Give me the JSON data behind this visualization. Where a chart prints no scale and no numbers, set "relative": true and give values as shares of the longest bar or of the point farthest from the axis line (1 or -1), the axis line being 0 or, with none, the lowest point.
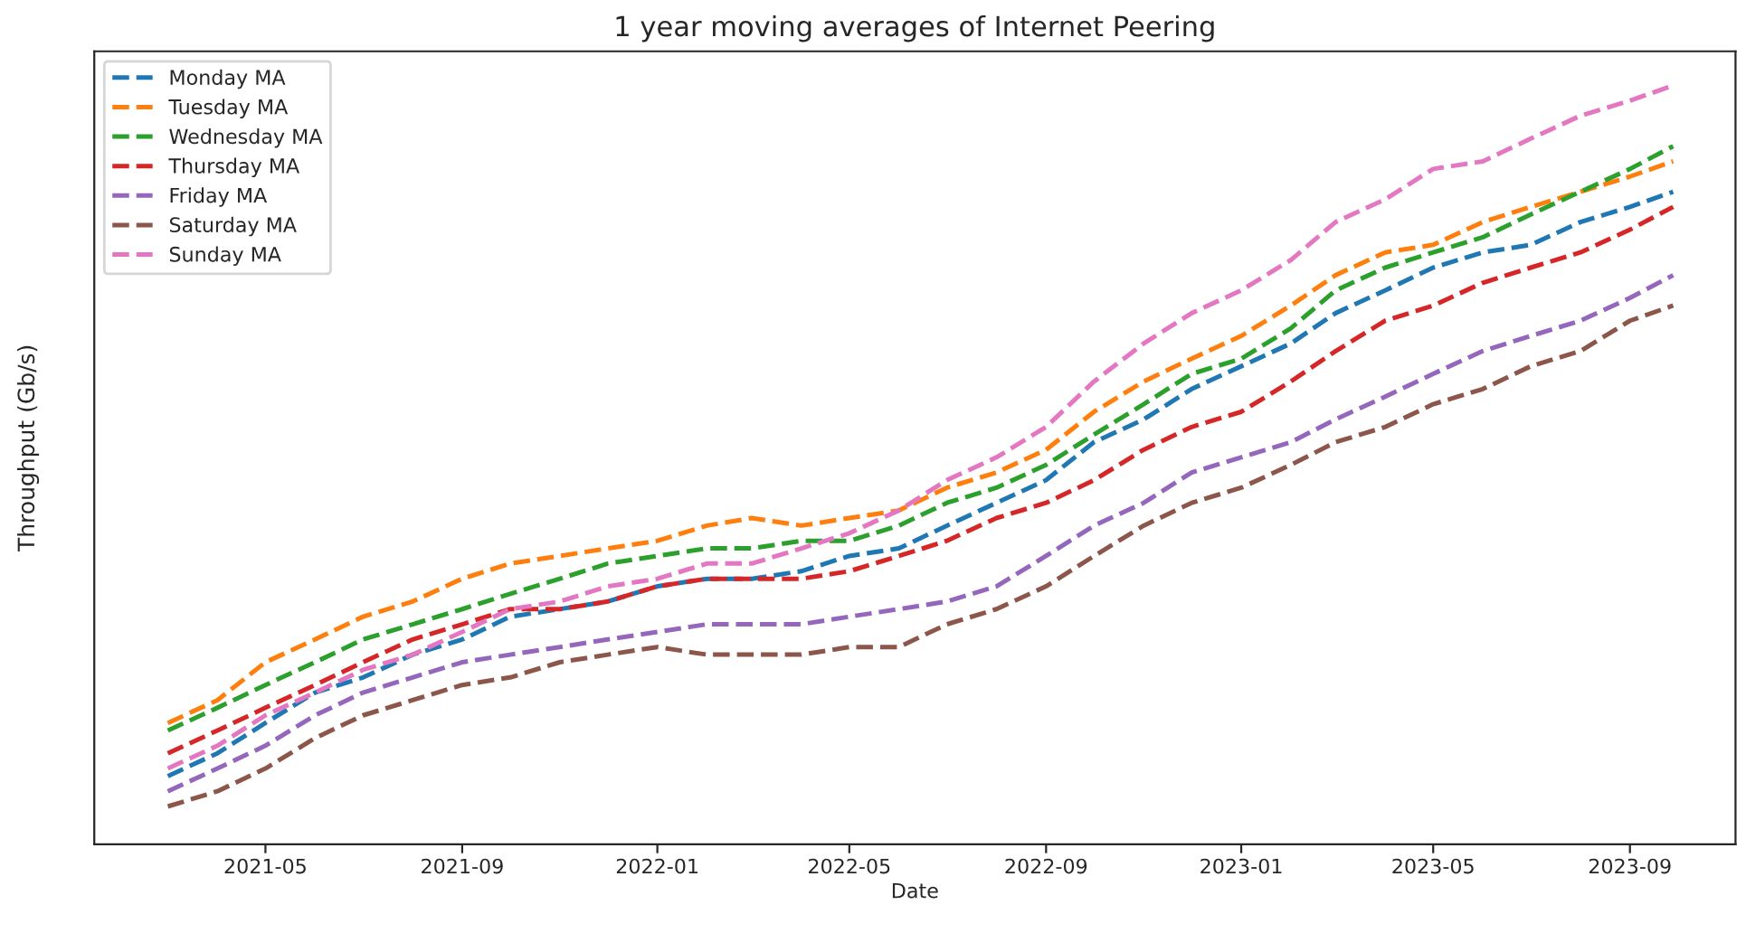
{
  "chart_data": {
    "type": "line",
    "title": "1 year moving averages of Internet Peering",
    "xlabel": "Date",
    "ylabel": "Throughput (Gb/s)",
    "relative": true,
    "line_style": "dashed",
    "legend": "top left",
    "grid": false,
    "x": [
      "2021-03-01",
      "2021-04-01",
      "2021-05-01",
      "2021-06-01",
      "2021-07-01",
      "2021-08-01",
      "2021-09-01",
      "2021-10-01",
      "2021-11-01",
      "2021-12-01",
      "2022-01-01",
      "2022-02-01",
      "2022-03-01",
      "2022-04-01",
      "2022-05-01",
      "2022-06-01",
      "2022-07-01",
      "2022-08-01",
      "2022-09-01",
      "2022-10-01",
      "2022-11-01",
      "2022-12-01",
      "2023-01-01",
      "2023-02-01",
      "2023-03-01",
      "2023-04-01",
      "2023-05-01",
      "2023-06-01",
      "2023-07-01",
      "2023-08-01",
      "2023-09-01",
      "2023-09-28"
    ],
    "xlim": [
      "2021-01-14",
      "2023-11-06"
    ],
    "xticks": [
      {
        "value": "2021-05-01",
        "label": "2021-05"
      },
      {
        "value": "2021-09-01",
        "label": "2021-09"
      },
      {
        "value": "2022-01-01",
        "label": "2022-01"
      },
      {
        "value": "2022-05-01",
        "label": "2022-05"
      },
      {
        "value": "2022-09-01",
        "label": "2022-09"
      },
      {
        "value": "2023-01-01",
        "label": "2023-01"
      },
      {
        "value": "2023-05-01",
        "label": "2023-05"
      },
      {
        "value": "2023-09-01",
        "label": "2023-09"
      }
    ],
    "series": [
      {
        "name": "Monday MA",
        "color": "#1f77b4",
        "values": [
          0.09,
          0.12,
          0.16,
          0.2,
          0.22,
          0.25,
          0.27,
          0.3,
          0.31,
          0.32,
          0.34,
          0.35,
          0.35,
          0.36,
          0.38,
          0.39,
          0.42,
          0.45,
          0.48,
          0.53,
          0.56,
          0.6,
          0.63,
          0.66,
          0.7,
          0.73,
          0.76,
          0.78,
          0.79,
          0.82,
          0.84,
          0.86
        ]
      },
      {
        "name": "Tuesday MA",
        "color": "#ff7f0e",
        "values": [
          0.16,
          0.19,
          0.24,
          0.27,
          0.3,
          0.32,
          0.35,
          0.37,
          0.38,
          0.39,
          0.4,
          0.42,
          0.43,
          0.42,
          0.43,
          0.44,
          0.47,
          0.49,
          0.52,
          0.57,
          0.61,
          0.64,
          0.67,
          0.71,
          0.75,
          0.78,
          0.79,
          0.82,
          0.84,
          0.86,
          0.88,
          0.9
        ]
      },
      {
        "name": "Wednesday MA",
        "color": "#2ca02c",
        "values": [
          0.15,
          0.18,
          0.21,
          0.24,
          0.27,
          0.29,
          0.31,
          0.33,
          0.35,
          0.37,
          0.38,
          0.39,
          0.39,
          0.4,
          0.4,
          0.42,
          0.45,
          0.47,
          0.5,
          0.54,
          0.58,
          0.62,
          0.64,
          0.68,
          0.73,
          0.76,
          0.78,
          0.8,
          0.83,
          0.86,
          0.89,
          0.92
        ]
      },
      {
        "name": "Thursday MA",
        "color": "#d62728",
        "values": [
          0.12,
          0.15,
          0.18,
          0.21,
          0.24,
          0.27,
          0.29,
          0.31,
          0.31,
          0.32,
          0.34,
          0.35,
          0.35,
          0.35,
          0.36,
          0.38,
          0.4,
          0.43,
          0.45,
          0.48,
          0.52,
          0.55,
          0.57,
          0.61,
          0.65,
          0.69,
          0.71,
          0.74,
          0.76,
          0.78,
          0.81,
          0.84
        ]
      },
      {
        "name": "Friday MA",
        "color": "#9467bd",
        "values": [
          0.07,
          0.1,
          0.13,
          0.17,
          0.2,
          0.22,
          0.24,
          0.25,
          0.26,
          0.27,
          0.28,
          0.29,
          0.29,
          0.29,
          0.3,
          0.31,
          0.32,
          0.34,
          0.38,
          0.42,
          0.45,
          0.49,
          0.51,
          0.53,
          0.56,
          0.59,
          0.62,
          0.65,
          0.67,
          0.69,
          0.72,
          0.75
        ]
      },
      {
        "name": "Saturday MA",
        "color": "#8c564b",
        "values": [
          0.05,
          0.07,
          0.1,
          0.14,
          0.17,
          0.19,
          0.21,
          0.22,
          0.24,
          0.25,
          0.26,
          0.25,
          0.25,
          0.25,
          0.26,
          0.26,
          0.29,
          0.31,
          0.34,
          0.38,
          0.42,
          0.45,
          0.47,
          0.5,
          0.53,
          0.55,
          0.58,
          0.6,
          0.63,
          0.65,
          0.69,
          0.71
        ]
      },
      {
        "name": "Sunday MA",
        "color": "#e377c2",
        "values": [
          0.1,
          0.13,
          0.17,
          0.2,
          0.23,
          0.25,
          0.28,
          0.31,
          0.32,
          0.34,
          0.35,
          0.37,
          0.37,
          0.39,
          0.41,
          0.44,
          0.48,
          0.51,
          0.55,
          0.61,
          0.66,
          0.7,
          0.73,
          0.77,
          0.82,
          0.85,
          0.89,
          0.9,
          0.93,
          0.96,
          0.98,
          1.0
        ]
      }
    ]
  }
}
